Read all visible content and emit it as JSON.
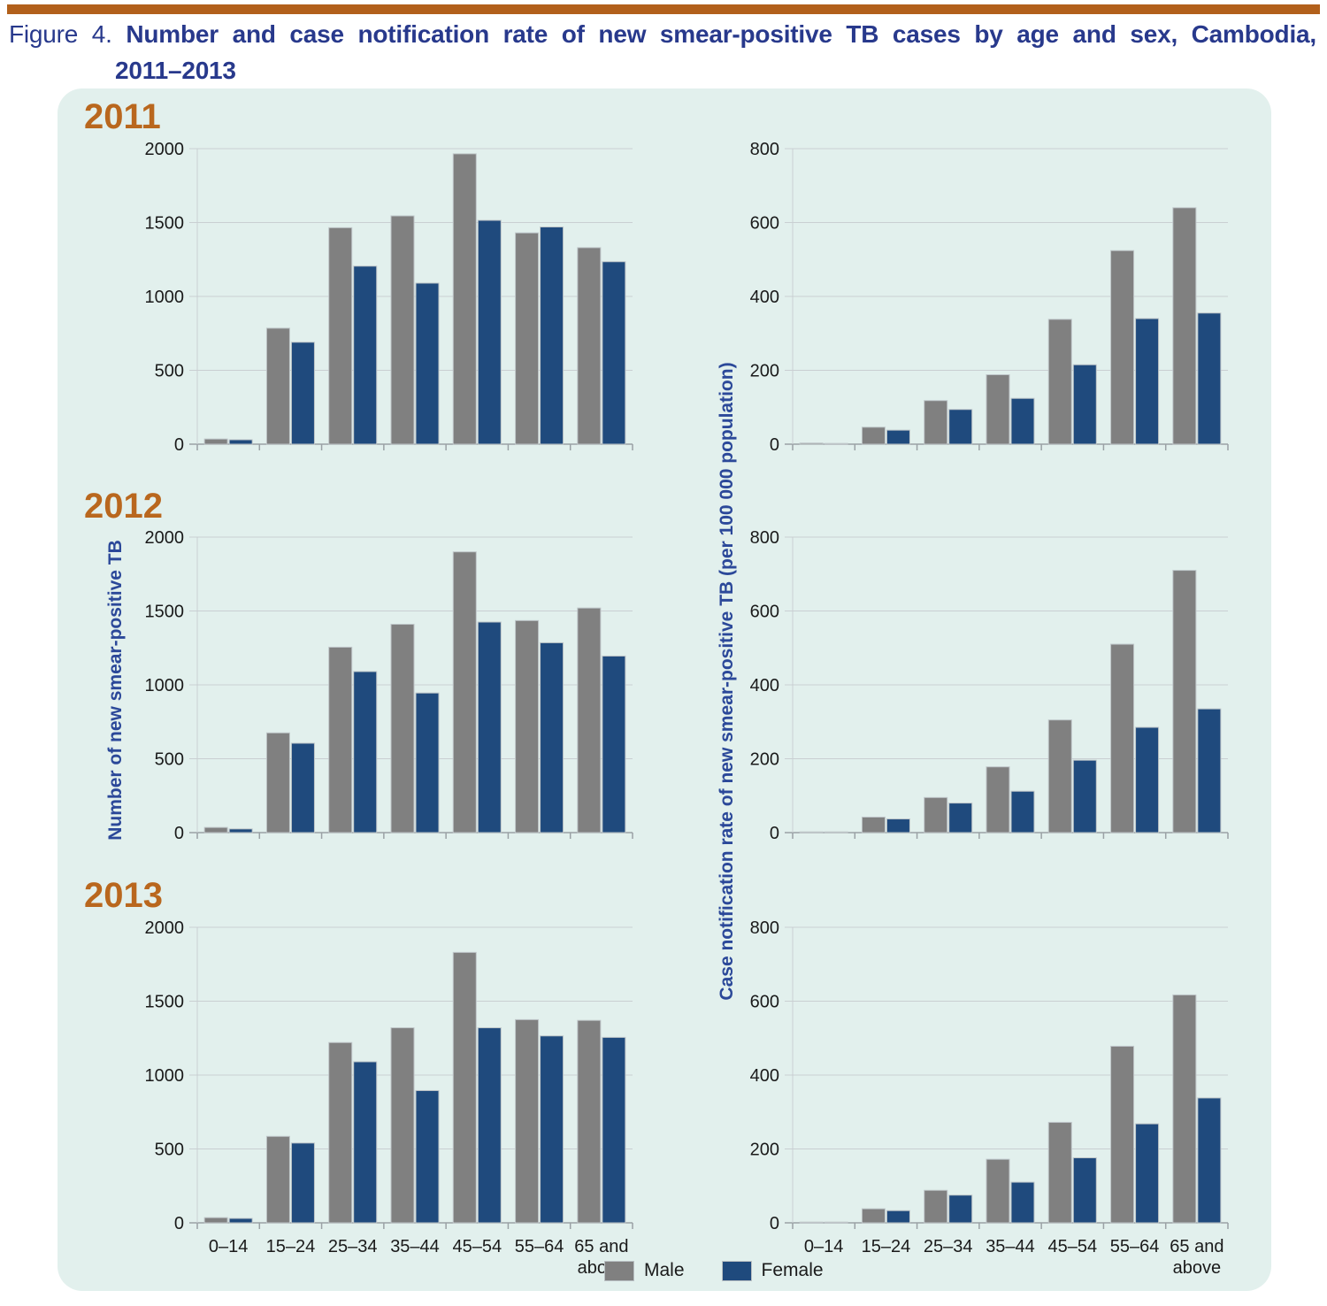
{
  "title": {
    "prefix": "Figure 4.",
    "bold_text": "Number and case notification rate of new smear-positive TB cases by age and sex, Cambodia,",
    "line2": "2011–2013"
  },
  "years": [
    "2011",
    "2012",
    "2013"
  ],
  "axis_labels": {
    "left": "Number of new smear-positive TB",
    "right": "Case notification rate of new smear-positive TB (per 100 000 population)"
  },
  "legend": {
    "male": "Male",
    "female": "Female"
  },
  "colors": {
    "male_bar": "#808080",
    "female_bar": "#1F4A7D",
    "bar_edge": "#bec5c8",
    "top_rule_orange": "#B2601B",
    "title_blue": "#28398C",
    "year_orange": "#B9671E",
    "axis_label_blue": "#2B4899",
    "panel_bg": "#E2F0ED",
    "gridline": "#c9cfd2",
    "axis_line": "#9aa1a5",
    "tick_text": "#1a1a1a"
  },
  "chart_data": [
    {
      "type": "bar",
      "year": "2011",
      "measure": "number",
      "categories": [
        "0–14",
        "15–24",
        "25–34",
        "35–44",
        "45–54",
        "55–64",
        "65 and above"
      ],
      "series": [
        {
          "name": "Male",
          "values": [
            35,
            785,
            1465,
            1545,
            1965,
            1430,
            1330
          ]
        },
        {
          "name": "Female",
          "values": [
            30,
            690,
            1205,
            1090,
            1515,
            1470,
            1235
          ]
        }
      ],
      "ylim": [
        0,
        2000
      ],
      "yticks": [
        0,
        500,
        1000,
        1500,
        2000
      ],
      "show_x_labels": false
    },
    {
      "type": "bar",
      "year": "2011",
      "measure": "rate",
      "categories": [
        "0–14",
        "15–24",
        "25–34",
        "35–44",
        "45–54",
        "55–64",
        "65 and above"
      ],
      "series": [
        {
          "name": "Male",
          "values": [
            3,
            46,
            118,
            188,
            338,
            524,
            640
          ]
        },
        {
          "name": "Female",
          "values": [
            2,
            38,
            94,
            124,
            215,
            340,
            355
          ]
        }
      ],
      "ylim": [
        0,
        800
      ],
      "yticks": [
        0,
        200,
        400,
        600,
        800
      ],
      "show_x_labels": false
    },
    {
      "type": "bar",
      "year": "2012",
      "measure": "number",
      "categories": [
        "0–14",
        "15–24",
        "25–34",
        "35–44",
        "45–54",
        "55–64",
        "65 and above"
      ],
      "series": [
        {
          "name": "Male",
          "values": [
            35,
            675,
            1255,
            1410,
            1900,
            1435,
            1520
          ]
        },
        {
          "name": "Female",
          "values": [
            25,
            605,
            1090,
            945,
            1425,
            1285,
            1195
          ]
        }
      ],
      "ylim": [
        0,
        2000
      ],
      "yticks": [
        0,
        500,
        1000,
        1500,
        2000
      ],
      "show_x_labels": false
    },
    {
      "type": "bar",
      "year": "2012",
      "measure": "rate",
      "categories": [
        "0–14",
        "15–24",
        "25–34",
        "35–44",
        "45–54",
        "55–64",
        "65 and above"
      ],
      "series": [
        {
          "name": "Male",
          "values": [
            2,
            42,
            95,
            178,
            305,
            510,
            710
          ]
        },
        {
          "name": "Female",
          "values": [
            2,
            37,
            80,
            112,
            196,
            285,
            335
          ]
        }
      ],
      "ylim": [
        0,
        800
      ],
      "yticks": [
        0,
        200,
        400,
        600,
        800
      ],
      "show_x_labels": false
    },
    {
      "type": "bar",
      "year": "2013",
      "measure": "number",
      "categories": [
        "0–14",
        "15–24",
        "25–34",
        "35–44",
        "45–54",
        "55–64",
        "65 and above"
      ],
      "series": [
        {
          "name": "Male",
          "values": [
            35,
            585,
            1220,
            1320,
            1830,
            1375,
            1370
          ]
        },
        {
          "name": "Female",
          "values": [
            30,
            540,
            1090,
            895,
            1320,
            1265,
            1255
          ]
        }
      ],
      "ylim": [
        0,
        2000
      ],
      "yticks": [
        0,
        500,
        1000,
        1500,
        2000
      ],
      "show_x_labels": true
    },
    {
      "type": "bar",
      "year": "2013",
      "measure": "rate",
      "categories": [
        "0–14",
        "15–24",
        "25–34",
        "35–44",
        "45–54",
        "55–64",
        "65 and above"
      ],
      "series": [
        {
          "name": "Male",
          "values": [
            2,
            38,
            88,
            172,
            272,
            478,
            617
          ]
        },
        {
          "name": "Female",
          "values": [
            2,
            33,
            75,
            110,
            176,
            268,
            338
          ]
        }
      ],
      "ylim": [
        0,
        800
      ],
      "yticks": [
        0,
        200,
        400,
        600,
        800
      ],
      "show_x_labels": true
    }
  ]
}
